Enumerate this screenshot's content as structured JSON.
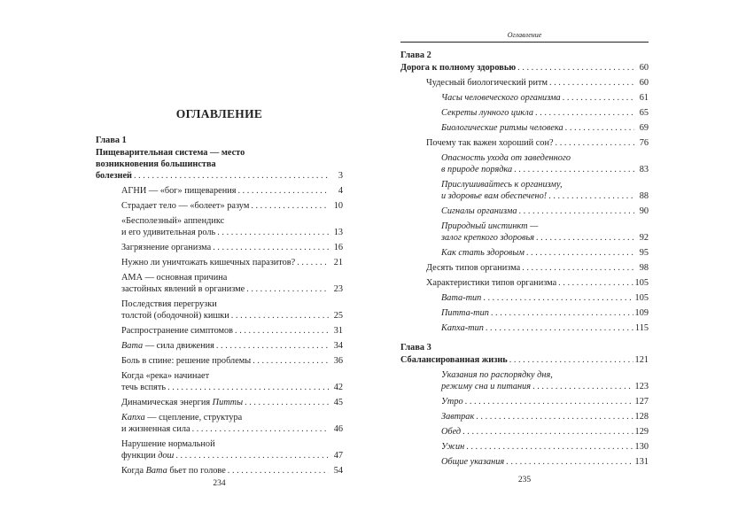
{
  "left_page": {
    "title": "ОГЛАВЛЕНИЕ",
    "page_number": "234",
    "entries": [
      {
        "level": "chap",
        "lines": [
          [
            {
              "t": "Глава 1"
            }
          ]
        ]
      },
      {
        "level": "heading",
        "lines": [
          [
            {
              "t": "Пищеварительная система — место"
            }
          ],
          [
            {
              "t": "возникновения большинства"
            }
          ],
          [
            {
              "t": "болезней"
            }
          ]
        ],
        "page": "3"
      },
      {
        "level": 1,
        "lines": [
          [
            {
              "t": "АГНИ — «бог» пищеварения"
            }
          ]
        ],
        "page": "4"
      },
      {
        "level": 1,
        "lines": [
          [
            {
              "t": "Страдает тело — «болеет» разум"
            }
          ]
        ],
        "page": "10"
      },
      {
        "level": 1,
        "lines": [
          [
            {
              "t": "«Бесполезный» аппендикс"
            }
          ],
          [
            {
              "t": "и его удивительная роль"
            }
          ]
        ],
        "page": "13"
      },
      {
        "level": 1,
        "lines": [
          [
            {
              "t": "Загрязнение организма"
            }
          ]
        ],
        "page": "16"
      },
      {
        "level": 1,
        "lines": [
          [
            {
              "t": "Нужно ли уничтожать кишечных паразитов?"
            }
          ]
        ],
        "page": "21"
      },
      {
        "level": 1,
        "lines": [
          [
            {
              "t": "АМА — основная причина"
            }
          ],
          [
            {
              "t": "застойных явлений в организме"
            }
          ]
        ],
        "page": "23"
      },
      {
        "level": 1,
        "lines": [
          [
            {
              "t": "Последствия перегрузки"
            }
          ],
          [
            {
              "t": "толстой (ободочной) кишки"
            }
          ]
        ],
        "page": "25"
      },
      {
        "level": 1,
        "lines": [
          [
            {
              "t": "Распространение симптомов"
            }
          ]
        ],
        "page": "31"
      },
      {
        "level": 1,
        "lines": [
          [
            {
              "t": "Вата",
              "i": true
            },
            {
              "t": " — сила движения"
            }
          ]
        ],
        "page": "34"
      },
      {
        "level": 1,
        "lines": [
          [
            {
              "t": "Боль в спине: решение проблемы"
            }
          ]
        ],
        "page": "36"
      },
      {
        "level": 1,
        "lines": [
          [
            {
              "t": "Когда «река» начинает"
            }
          ],
          [
            {
              "t": "течь вспять"
            }
          ]
        ],
        "page": "42"
      },
      {
        "level": 1,
        "lines": [
          [
            {
              "t": "Динамическая энергия "
            },
            {
              "t": "Питты",
              "i": true
            }
          ]
        ],
        "page": "45"
      },
      {
        "level": 1,
        "lines": [
          [
            {
              "t": "Капха",
              "i": true
            },
            {
              "t": " — сцепление, структура"
            }
          ],
          [
            {
              "t": "и жизненная сила"
            }
          ]
        ],
        "page": "46"
      },
      {
        "level": 1,
        "lines": [
          [
            {
              "t": "Нарушение нормальной"
            }
          ],
          [
            {
              "t": "функции "
            },
            {
              "t": "дош",
              "i": true
            }
          ]
        ],
        "page": "47"
      },
      {
        "level": 1,
        "lines": [
          [
            {
              "t": "Когда "
            },
            {
              "t": "Вата",
              "i": true
            },
            {
              "t": " бьет по голове"
            }
          ]
        ],
        "page": "54"
      }
    ]
  },
  "right_page": {
    "running_head": "Оглавление",
    "page_number": "235",
    "entries": [
      {
        "level": "chap",
        "lines": [
          [
            {
              "t": "Глава 2"
            }
          ]
        ]
      },
      {
        "level": "heading",
        "lines": [
          [
            {
              "t": "Дорога к полному здоровью"
            }
          ]
        ],
        "page": "60"
      },
      {
        "level": 1,
        "lines": [
          [
            {
              "t": "Чудесный биологический ритм"
            }
          ]
        ],
        "page": "60"
      },
      {
        "level": 2,
        "lines": [
          [
            {
              "t": "Часы человеческого организма",
              "i": true
            }
          ]
        ],
        "page": "61"
      },
      {
        "level": 2,
        "lines": [
          [
            {
              "t": "Секреты лунного цикла",
              "i": true
            }
          ]
        ],
        "page": "65"
      },
      {
        "level": 2,
        "lines": [
          [
            {
              "t": "Биологические ритмы человека",
              "i": true
            }
          ]
        ],
        "page": "69"
      },
      {
        "level": 1,
        "lines": [
          [
            {
              "t": "Почему так важен хороший сон?"
            }
          ]
        ],
        "page": "76"
      },
      {
        "level": 2,
        "lines": [
          [
            {
              "t": "Опасность ухода от заведенного",
              "i": true
            }
          ],
          [
            {
              "t": "в природе порядка",
              "i": true
            }
          ]
        ],
        "page": "83"
      },
      {
        "level": 2,
        "lines": [
          [
            {
              "t": "Прислушивайтесь к организму,",
              "i": true
            }
          ],
          [
            {
              "t": "и здоровье вам обеспечено!",
              "i": true
            }
          ]
        ],
        "page": "88"
      },
      {
        "level": 2,
        "lines": [
          [
            {
              "t": "Сигналы организма",
              "i": true
            }
          ]
        ],
        "page": "90"
      },
      {
        "level": 2,
        "lines": [
          [
            {
              "t": "Природный инстинкт —",
              "i": true
            }
          ],
          [
            {
              "t": "залог крепкого здоровья",
              "i": true
            }
          ]
        ],
        "page": "92"
      },
      {
        "level": 2,
        "lines": [
          [
            {
              "t": "Как стать здоровым",
              "i": true
            }
          ]
        ],
        "page": "95"
      },
      {
        "level": 1,
        "lines": [
          [
            {
              "t": "Десять типов организма"
            }
          ]
        ],
        "page": "98"
      },
      {
        "level": 1,
        "lines": [
          [
            {
              "t": "Характеристики типов организма"
            }
          ]
        ],
        "page": "105"
      },
      {
        "level": 2,
        "lines": [
          [
            {
              "t": "Вата-тип",
              "i": true
            }
          ]
        ],
        "page": "105"
      },
      {
        "level": 2,
        "lines": [
          [
            {
              "t": "Питта-тип",
              "i": true
            }
          ]
        ],
        "page": "109"
      },
      {
        "level": 2,
        "lines": [
          [
            {
              "t": "Капха-тип",
              "i": true
            }
          ]
        ],
        "page": "115"
      },
      {
        "level": "chap",
        "gap": true,
        "lines": [
          [
            {
              "t": "Глава 3"
            }
          ]
        ]
      },
      {
        "level": "heading",
        "lines": [
          [
            {
              "t": "Сбалансированная жизнь"
            }
          ]
        ],
        "page": "121"
      },
      {
        "level": 2,
        "lines": [
          [
            {
              "t": "Указания по распорядку дня,",
              "i": true
            }
          ],
          [
            {
              "t": "режиму сна и питания",
              "i": true
            }
          ]
        ],
        "page": "123"
      },
      {
        "level": 2,
        "lines": [
          [
            {
              "t": "Утро",
              "i": true
            }
          ]
        ],
        "page": "127"
      },
      {
        "level": 2,
        "lines": [
          [
            {
              "t": "Завтрак",
              "i": true
            }
          ]
        ],
        "page": "128"
      },
      {
        "level": 2,
        "lines": [
          [
            {
              "t": "Обед",
              "i": true
            }
          ]
        ],
        "page": "129"
      },
      {
        "level": 2,
        "lines": [
          [
            {
              "t": "Ужин",
              "i": true
            }
          ]
        ],
        "page": "130"
      },
      {
        "level": 2,
        "lines": [
          [
            {
              "t": "Общие указания",
              "i": true
            }
          ]
        ],
        "page": "131"
      }
    ]
  }
}
